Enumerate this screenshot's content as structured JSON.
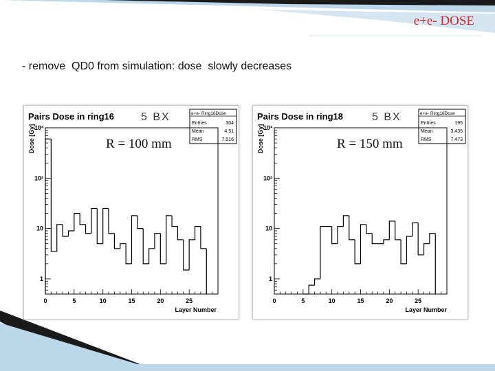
{
  "slide": {
    "title": "e+e- DOSE",
    "bullet": "- remove  QD0 from simulation: dose  slowly decreases"
  },
  "colors": {
    "title": "#cc2b2b",
    "deco_dark": "#1a1a1a",
    "deco_blue": "#bcd6ea",
    "histogram": "#000000"
  },
  "panels": [
    {
      "bx": "5 BX",
      "radius_label": "R = 100 mm"
    },
    {
      "bx": "5 BX",
      "radius_label": "R = 150 mm"
    }
  ],
  "chart_data": [
    {
      "type": "bar",
      "title": "Pairs Dose in ring16",
      "xlabel": "Layer Number",
      "ylabel": "Dose [Gy]",
      "xlim": [
        0,
        30
      ],
      "ylim": [
        0.5,
        1000
      ],
      "log_y": true,
      "x_ticks": [
        "0",
        "5",
        "10",
        "15",
        "20",
        "25"
      ],
      "y_ticks": [
        "1",
        "10",
        "10²",
        "10³"
      ],
      "grid": false,
      "stats": {
        "name": "e+e- Ring16Dose",
        "entries": "304",
        "mean": "4.51",
        "rms": "7.516",
        "labels": [
          "Entries",
          "Mean",
          "RMS"
        ]
      },
      "bins": [
        {
          "x": 0,
          "y": 600
        },
        {
          "x": 1,
          "y": 3.5
        },
        {
          "x": 2,
          "y": 12
        },
        {
          "x": 3,
          "y": 7
        },
        {
          "x": 4,
          "y": 9
        },
        {
          "x": 5,
          "y": 20
        },
        {
          "x": 6,
          "y": 12
        },
        {
          "x": 7,
          "y": 8
        },
        {
          "x": 8,
          "y": 25
        },
        {
          "x": 9,
          "y": 5
        },
        {
          "x": 10,
          "y": 25
        },
        {
          "x": 11,
          "y": 8
        },
        {
          "x": 12,
          "y": 4
        },
        {
          "x": 13,
          "y": 5
        },
        {
          "x": 14,
          "y": 2
        },
        {
          "x": 15,
          "y": 18
        },
        {
          "x": 16,
          "y": 10
        },
        {
          "x": 17,
          "y": 2
        },
        {
          "x": 18,
          "y": 4
        },
        {
          "x": 19,
          "y": 8
        },
        {
          "x": 20,
          "y": 2
        },
        {
          "x": 21,
          "y": 18
        },
        {
          "x": 22,
          "y": 11
        },
        {
          "x": 23,
          "y": 6
        },
        {
          "x": 24,
          "y": 1.5
        },
        {
          "x": 25,
          "y": 6
        },
        {
          "x": 26,
          "y": 11
        },
        {
          "x": 27,
          "y": 4
        }
      ]
    },
    {
      "type": "bar",
      "title": "Pairs Dose in ring18",
      "xlabel": "Layer Number",
      "ylabel": "Dose [Gy]",
      "xlim": [
        0,
        30
      ],
      "ylim": [
        0.5,
        1000
      ],
      "log_y": true,
      "x_ticks": [
        "0",
        "5",
        "10",
        "15",
        "20",
        "25"
      ],
      "y_ticks": [
        "1",
        "10",
        "10²",
        "10³"
      ],
      "grid": false,
      "stats": {
        "name": "e+e- Ring18Dose",
        "entries": "195",
        "mean": "3.435",
        "rms": "7.473",
        "labels": [
          "Entries",
          "Mean",
          "RMS"
        ]
      },
      "bins": [
        {
          "x": 5,
          "y": 0.5
        },
        {
          "x": 6,
          "y": 0.75
        },
        {
          "x": 7,
          "y": 1
        },
        {
          "x": 8,
          "y": 11
        },
        {
          "x": 9,
          "y": 11
        },
        {
          "x": 10,
          "y": 5
        },
        {
          "x": 11,
          "y": 11
        },
        {
          "x": 12,
          "y": 18
        },
        {
          "x": 13,
          "y": 6
        },
        {
          "x": 14,
          "y": 2
        },
        {
          "x": 15,
          "y": 12
        },
        {
          "x": 16,
          "y": 8
        },
        {
          "x": 17,
          "y": 5
        },
        {
          "x": 18,
          "y": 5
        },
        {
          "x": 19,
          "y": 6
        },
        {
          "x": 20,
          "y": 14
        },
        {
          "x": 21,
          "y": 6
        },
        {
          "x": 22,
          "y": 2
        },
        {
          "x": 23,
          "y": 7
        },
        {
          "x": 24,
          "y": 13
        },
        {
          "x": 25,
          "y": 3
        },
        {
          "x": 26,
          "y": 5
        },
        {
          "x": 27,
          "y": 8
        }
      ]
    }
  ]
}
